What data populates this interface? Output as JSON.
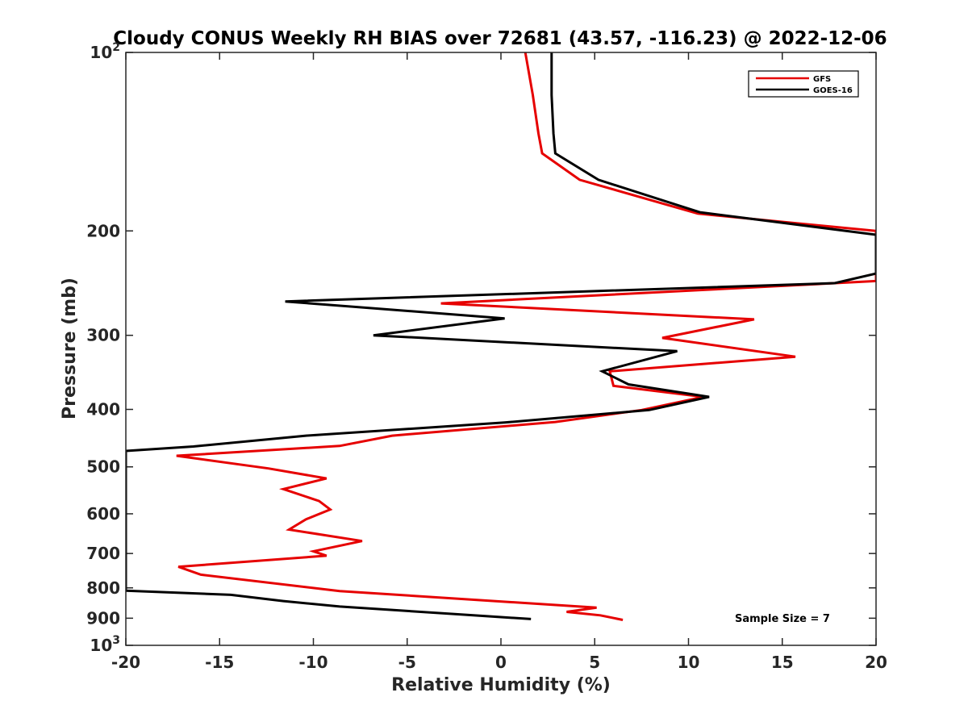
{
  "chart_data": {
    "type": "line",
    "title": "Cloudy CONUS Weekly RH BIAS over 72681 (43.57, -116.23) @ 2022-12-06",
    "xlabel": "Relative Humidity (%)",
    "ylabel": "Pressure (mb)",
    "xlim": [
      -20,
      20
    ],
    "ylim": [
      100,
      1000
    ],
    "y_scale": "log",
    "y_reversed": true,
    "x_ticks": [
      "-20",
      "-15",
      "-10",
      "-5",
      "0",
      "5",
      "10",
      "15",
      "20"
    ],
    "x_tick_values": [
      -20,
      -15,
      -10,
      -5,
      0,
      5,
      10,
      15,
      20
    ],
    "y_ticks": [
      {
        "value": 100,
        "base": "10",
        "exp": "2"
      },
      {
        "value": 200,
        "label": "200"
      },
      {
        "value": 300,
        "label": "300"
      },
      {
        "value": 400,
        "label": "400"
      },
      {
        "value": 500,
        "label": "500"
      },
      {
        "value": 600,
        "label": "600"
      },
      {
        "value": 700,
        "label": "700"
      },
      {
        "value": 800,
        "label": "800"
      },
      {
        "value": 900,
        "label": "900"
      },
      {
        "value": 1000,
        "base": "10",
        "exp": "3"
      }
    ],
    "legend_position": "top-right",
    "series": [
      {
        "name": "GFS",
        "color": "#e60000",
        "points": [
          [
            1.3,
            100
          ],
          [
            1.7,
            118
          ],
          [
            2.0,
            137
          ],
          [
            2.2,
            148
          ],
          [
            4.2,
            164
          ],
          [
            10.5,
            187
          ],
          [
            20,
            200
          ],
          [
            20,
            243
          ],
          [
            -3.2,
            265
          ],
          [
            13.5,
            282
          ],
          [
            8.6,
            303
          ],
          [
            15.7,
            326
          ],
          [
            5.8,
            345
          ],
          [
            6.0,
            365
          ],
          [
            10.8,
            381
          ],
          [
            7.5,
            401
          ],
          [
            2.9,
            420
          ],
          [
            -5.8,
            443
          ],
          [
            -8.6,
            461
          ],
          [
            -17.3,
            479
          ],
          [
            -12.4,
            503
          ],
          [
            -9.3,
            523
          ],
          [
            -11.6,
            545
          ],
          [
            -9.7,
            571
          ],
          [
            -9.1,
            590
          ],
          [
            -10.4,
            613
          ],
          [
            -11.3,
            638
          ],
          [
            -7.4,
            667
          ],
          [
            -10,
            694
          ],
          [
            -9.3,
            706
          ],
          [
            -17.2,
            737
          ],
          [
            -16,
            760
          ],
          [
            -8.6,
            810
          ],
          [
            5.1,
            864
          ],
          [
            3.5,
            878
          ],
          [
            5.3,
            890
          ],
          [
            6.5,
            906
          ]
        ]
      },
      {
        "name": "GOES-16",
        "color": "#000000",
        "points": [
          [
            2.7,
            100
          ],
          [
            2.7,
            118
          ],
          [
            2.8,
            137
          ],
          [
            2.9,
            148
          ],
          [
            5.2,
            164
          ],
          [
            10.6,
            186
          ],
          [
            20,
            203
          ],
          [
            20,
            236
          ],
          [
            17.8,
            245
          ],
          [
            -11.5,
            263
          ],
          [
            0.2,
            281
          ],
          [
            -6.8,
            300
          ],
          [
            9.4,
            319
          ],
          [
            5.4,
            345
          ],
          [
            6.8,
            363
          ],
          [
            11.1,
            381
          ],
          [
            7.9,
            401
          ],
          [
            0.2,
            421
          ],
          [
            -10.4,
            443
          ],
          [
            -16.4,
            462
          ],
          [
            -20,
            470
          ],
          [
            -20,
            809
          ],
          [
            -14.4,
            822
          ],
          [
            -11.6,
            842
          ],
          [
            -8.6,
            860
          ],
          [
            1.6,
            903
          ]
        ]
      }
    ],
    "annotations": [
      {
        "text": "Sample Size = 7"
      }
    ]
  }
}
